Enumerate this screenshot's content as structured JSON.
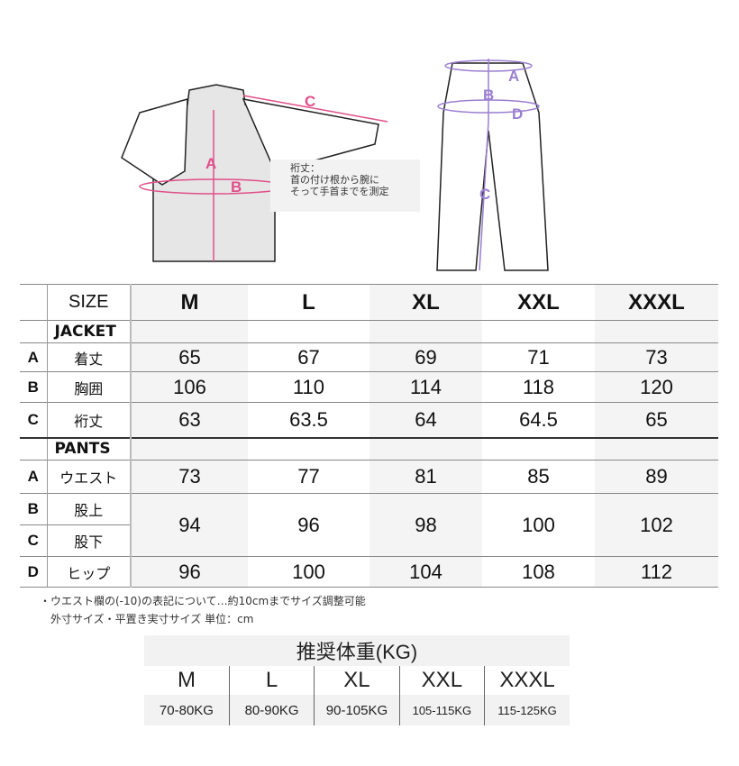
{
  "jacket_diagram": {
    "labels": {
      "A": "A",
      "B": "B",
      "C": "C"
    },
    "note": "裄丈：\n首の付け根から腕に\nそって手首までを測定"
  },
  "pants_diagram": {
    "labels": {
      "A": "A",
      "B": "B",
      "C": "C",
      "D": "D"
    }
  },
  "colors": {
    "jacket_accent": "#e0508a",
    "pants_accent": "#9b7fd0"
  },
  "size_table": {
    "header_label": "SIZE",
    "sizes": [
      "M",
      "L",
      "XL",
      "XXL",
      "XXXL"
    ],
    "jacket": {
      "title": "JACKET",
      "rows": [
        {
          "letter": "A",
          "label": "着丈",
          "values": [
            "65",
            "67",
            "69",
            "71",
            "73"
          ]
        },
        {
          "letter": "B",
          "label": "胸囲",
          "values": [
            "106",
            "110",
            "114",
            "118",
            "120"
          ]
        },
        {
          "letter": "C",
          "label": "裄丈",
          "values": [
            "63",
            "63.5",
            "64",
            "64.5",
            "65"
          ]
        }
      ]
    },
    "pants": {
      "title": "PANTS",
      "rows": [
        {
          "letter": "A",
          "label": "ウエスト",
          "values": [
            "73",
            "77",
            "81",
            "85",
            "89"
          ]
        },
        {
          "letter": "B",
          "label": "股上"
        },
        {
          "letter": "C",
          "label": "股下"
        },
        {
          "letter": "D",
          "label": "ヒップ",
          "values": [
            "96",
            "100",
            "104",
            "108",
            "112"
          ]
        }
      ],
      "bc_merged_values": [
        "94",
        "96",
        "98",
        "100",
        "102"
      ]
    }
  },
  "notes": [
    "・ウエスト欄の(-10)の表記について…約10cmまでサイズ調整可能",
    "外寸サイズ・平置き実寸サイズ  単位：cm"
  ],
  "weight_table": {
    "title": "推奨体重(KG)",
    "sizes": [
      "M",
      "L",
      "XL",
      "XXL",
      "XXXL"
    ],
    "weights": [
      "70-80KG",
      "80-90KG",
      "90-105KG",
      "105-115KG",
      "115-125KG"
    ]
  }
}
